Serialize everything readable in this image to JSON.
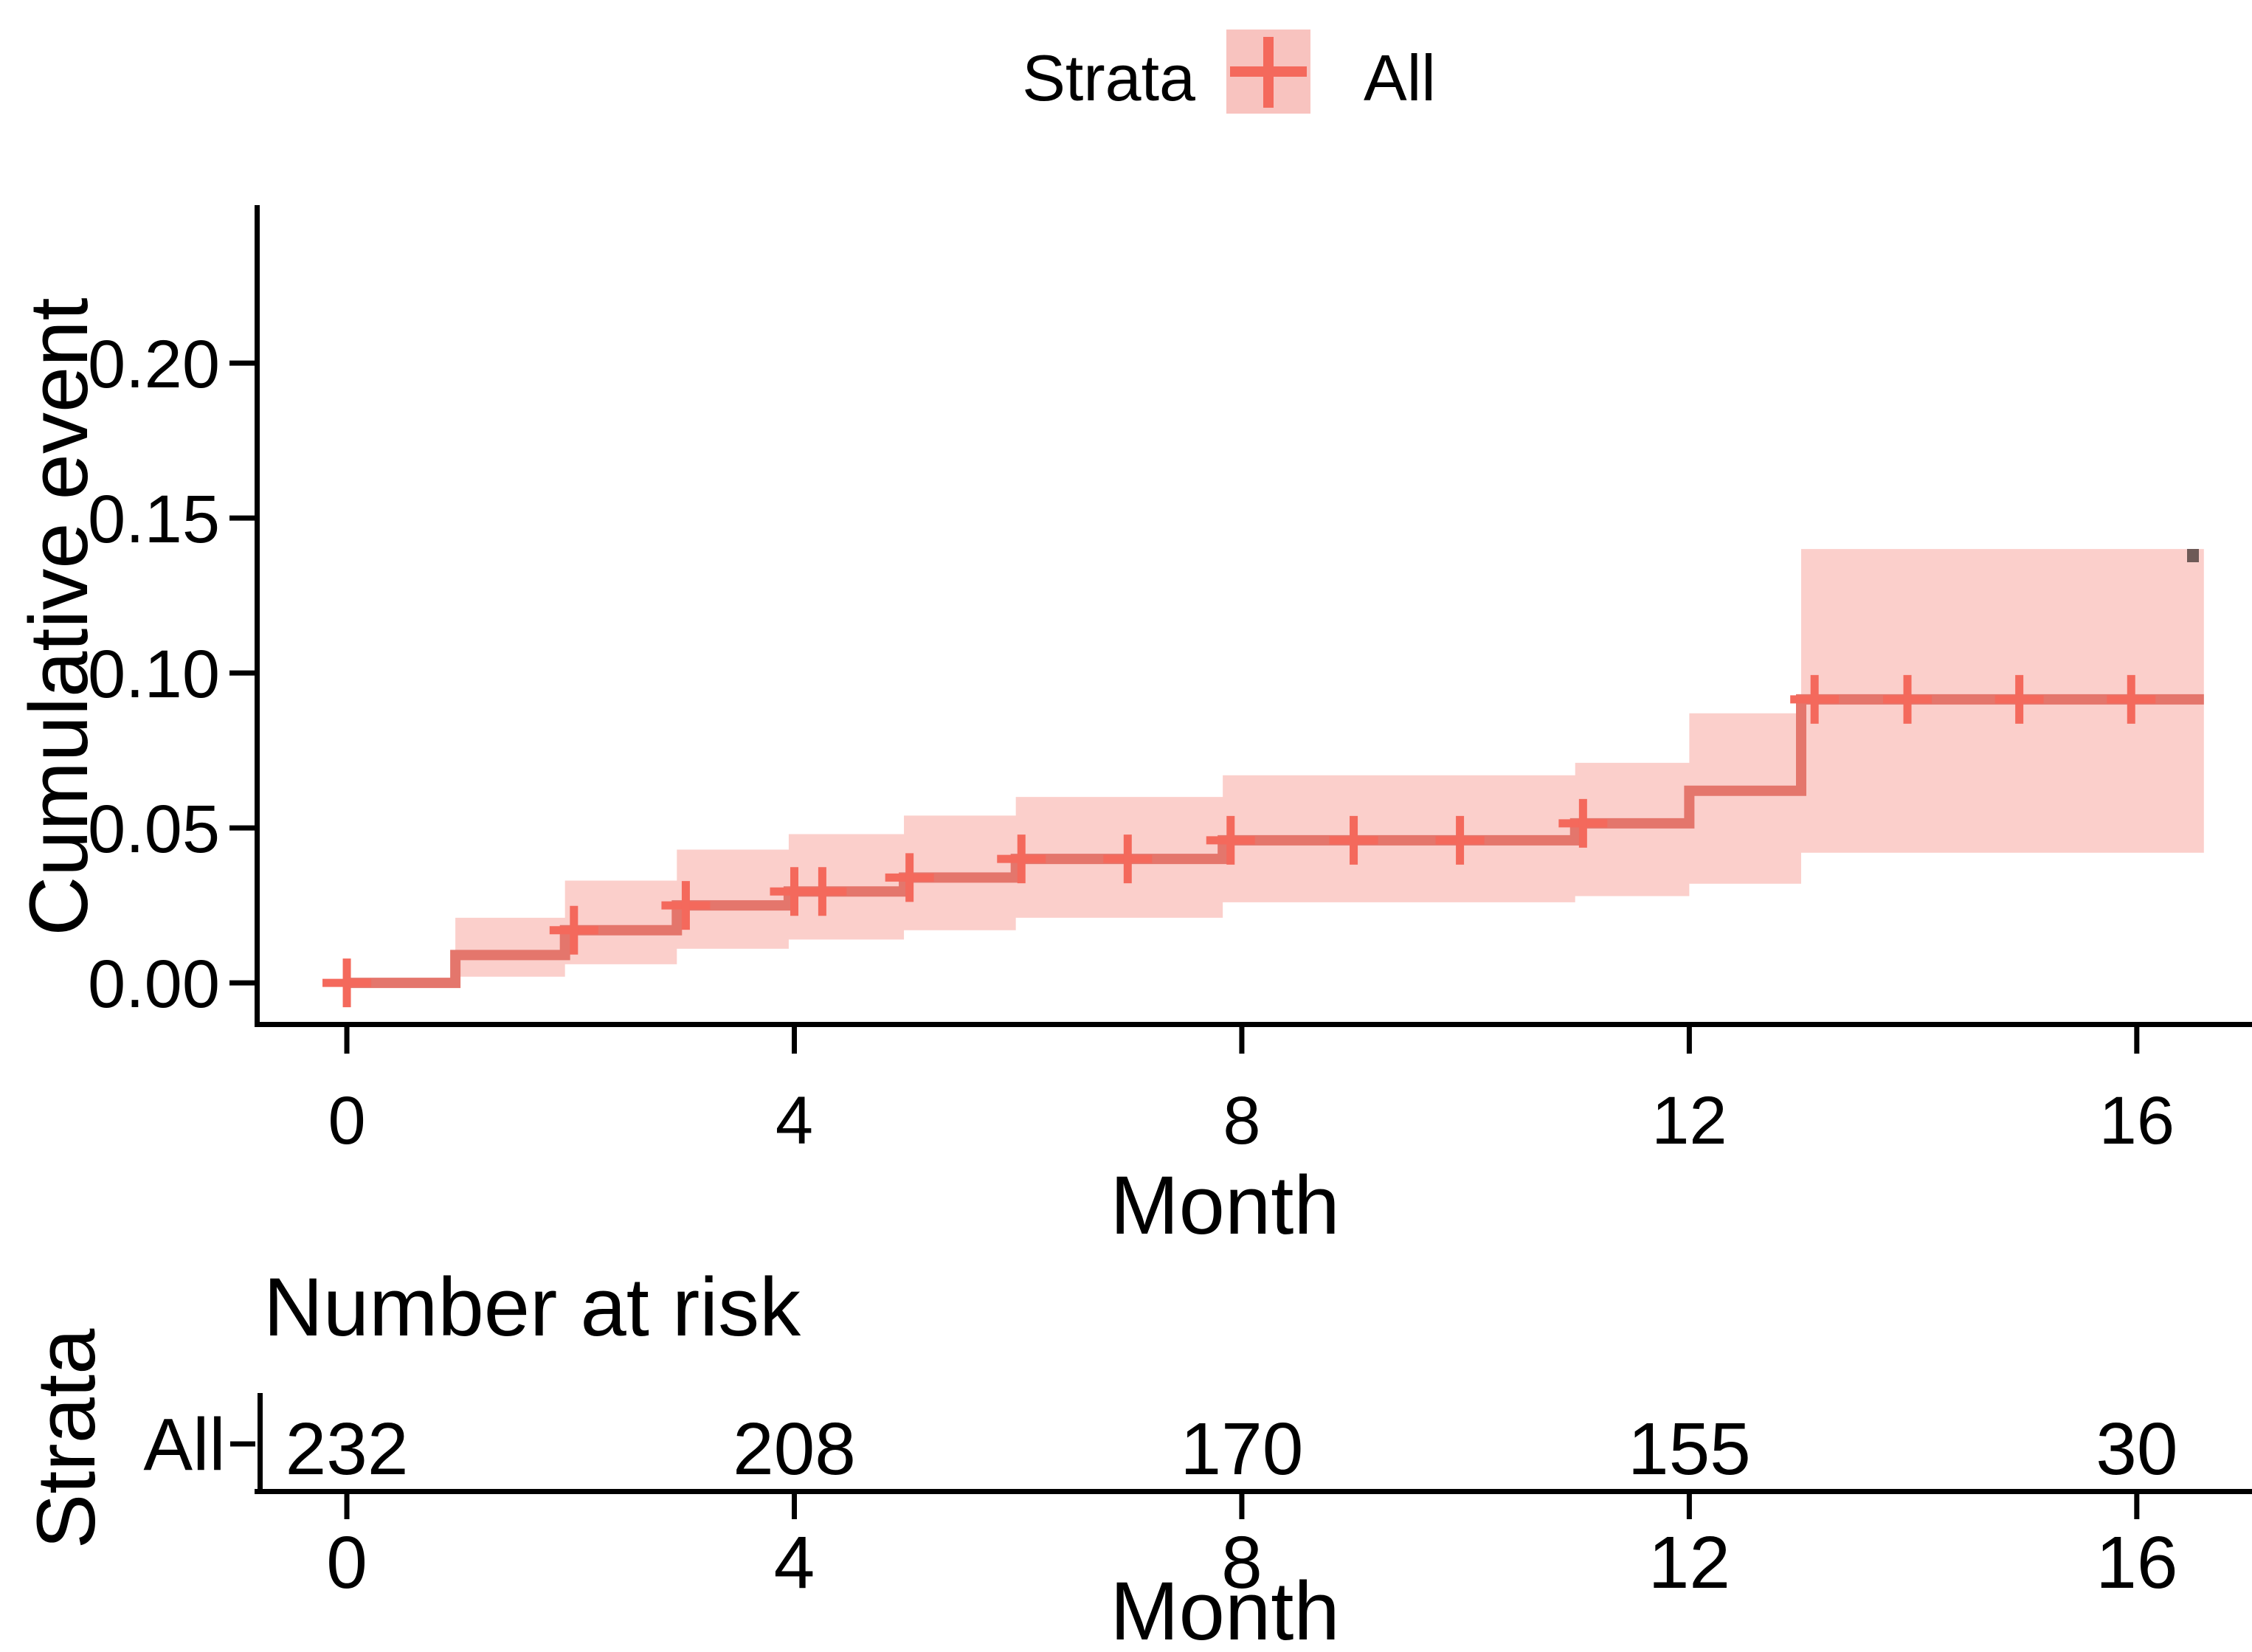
{
  "legend": {
    "title": "Strata",
    "items": [
      {
        "label": "All",
        "key_icon": "censor-plus-icon"
      }
    ]
  },
  "colors": {
    "line": "#E4766C",
    "marker": "#F4695C",
    "ribbon": "#FBCFCB",
    "legend_key_fill": "#F8C3BF",
    "strata_label": "#EC8E88",
    "axis": "#000000",
    "text": "#000000",
    "artifact": "#6E5A57"
  },
  "chart_data": {
    "type": "line",
    "subtype": "kaplan-meier-cumulative-event-step-curve-with-95ci",
    "title": "",
    "xlabel": "Month",
    "ylabel": "Cumulative event",
    "x_ticks": [
      0,
      4,
      8,
      12,
      16
    ],
    "y_ticks": [
      "0.00",
      "0.05",
      "0.10",
      "0.15",
      "0.20"
    ],
    "xlim": [
      -0.805,
      17.03
    ],
    "ylim": [
      -0.0133,
      0.2505
    ],
    "grid": false,
    "legend_position": "top",
    "end_t": 16.6,
    "series": [
      {
        "name": "All",
        "steps": [
          {
            "t": 0.0,
            "v": 0.0
          },
          {
            "t": 0.97,
            "v": 0.009
          },
          {
            "t": 1.95,
            "v": 0.017
          },
          {
            "t": 2.95,
            "v": 0.025
          },
          {
            "t": 3.95,
            "v": 0.0295
          },
          {
            "t": 4.98,
            "v": 0.034
          },
          {
            "t": 5.98,
            "v": 0.04
          },
          {
            "t": 7.83,
            "v": 0.046
          },
          {
            "t": 10.98,
            "v": 0.0515
          },
          {
            "t": 12.0,
            "v": 0.062
          },
          {
            "t": 13.0,
            "v": 0.0915
          }
        ],
        "censor_marks": [
          {
            "t": 0.0,
            "v": 0.0
          },
          {
            "t": 2.03,
            "v": 0.017
          },
          {
            "t": 3.03,
            "v": 0.025
          },
          {
            "t": 4.0,
            "v": 0.0295
          },
          {
            "t": 4.25,
            "v": 0.0295
          },
          {
            "t": 5.03,
            "v": 0.034
          },
          {
            "t": 6.03,
            "v": 0.04
          },
          {
            "t": 6.98,
            "v": 0.04
          },
          {
            "t": 7.9,
            "v": 0.046
          },
          {
            "t": 9.0,
            "v": 0.046
          },
          {
            "t": 9.95,
            "v": 0.046
          },
          {
            "t": 11.05,
            "v": 0.0515
          },
          {
            "t": 13.12,
            "v": 0.0915
          },
          {
            "t": 13.95,
            "v": 0.0915
          },
          {
            "t": 14.95,
            "v": 0.0915
          },
          {
            "t": 15.95,
            "v": 0.0915
          }
        ],
        "ci_segments": [
          {
            "t0": 0.97,
            "t1": 1.95,
            "lo": 0.002,
            "hi": 0.021
          },
          {
            "t0": 1.95,
            "t1": 2.95,
            "lo": 0.006,
            "hi": 0.033
          },
          {
            "t0": 2.95,
            "t1": 3.95,
            "lo": 0.011,
            "hi": 0.043
          },
          {
            "t0": 3.95,
            "t1": 4.98,
            "lo": 0.014,
            "hi": 0.048
          },
          {
            "t0": 4.98,
            "t1": 5.98,
            "lo": 0.017,
            "hi": 0.054
          },
          {
            "t0": 5.98,
            "t1": 7.83,
            "lo": 0.021,
            "hi": 0.06
          },
          {
            "t0": 7.83,
            "t1": 10.98,
            "lo": 0.026,
            "hi": 0.067
          },
          {
            "t0": 10.98,
            "t1": 12.0,
            "lo": 0.028,
            "hi": 0.071
          },
          {
            "t0": 12.0,
            "t1": 13.0,
            "lo": 0.032,
            "hi": 0.087
          },
          {
            "t0": 13.0,
            "t1": 16.6,
            "lo": 0.042,
            "hi": 0.14
          }
        ]
      }
    ]
  },
  "risk_table": {
    "title": "Number at risk",
    "ylabel": "Strata",
    "xlabel": "Month",
    "x_ticks": [
      0,
      4,
      8,
      12,
      16
    ],
    "rows": [
      {
        "label": "All",
        "values": [
          "232",
          "208",
          "170",
          "155",
          "30"
        ]
      }
    ]
  }
}
